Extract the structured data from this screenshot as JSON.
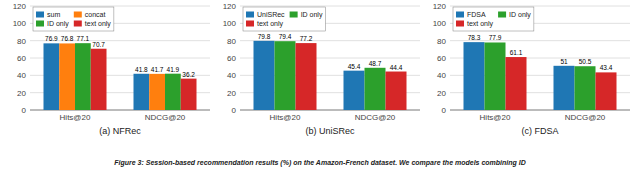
{
  "caption": "Figure 3: Session-based recommendation results (%) on the Amazon-French dataset. We compare the models combining ID",
  "chart_data": [
    {
      "type": "bar",
      "subtitle": "(a) NFRec",
      "categories": [
        "Hits@20",
        "NDCG@20"
      ],
      "series": [
        {
          "name": "sum",
          "color": "#1f77b4",
          "values": [
            76.9,
            41.8
          ]
        },
        {
          "name": "concat",
          "color": "#ff7f0e",
          "values": [
            76.8,
            41.7
          ]
        },
        {
          "name": "ID only",
          "color": "#2ca02c",
          "values": [
            77.1,
            41.9
          ]
        },
        {
          "name": "text only",
          "color": "#d62728",
          "values": [
            70.7,
            36.2
          ]
        }
      ],
      "ylim": [
        0,
        120
      ],
      "yticks": [
        0,
        20,
        40,
        60,
        80,
        100,
        120
      ],
      "grid": true,
      "legend": "upper left",
      "data_labels": true
    },
    {
      "type": "bar",
      "subtitle": "(b) UniSRec",
      "categories": [
        "Hits@20",
        "NDCG@20"
      ],
      "series": [
        {
          "name": "UniSRec",
          "color": "#1f77b4",
          "values": [
            79.8,
            45.4
          ]
        },
        {
          "name": "ID only",
          "color": "#2ca02c",
          "values": [
            79.4,
            48.7
          ]
        },
        {
          "name": "text only",
          "color": "#d62728",
          "values": [
            77.2,
            44.4
          ]
        }
      ],
      "ylim": [
        0,
        120
      ],
      "yticks": [
        0,
        20,
        40,
        60,
        80,
        100,
        120
      ],
      "grid": true,
      "legend": "upper left",
      "data_labels": true
    },
    {
      "type": "bar",
      "subtitle": "(c) FDSA",
      "categories": [
        "Hits@20",
        "NDCG@20"
      ],
      "series": [
        {
          "name": "FDSA",
          "color": "#1f77b4",
          "values": [
            78.3,
            51.0
          ]
        },
        {
          "name": "ID only",
          "color": "#2ca02c",
          "values": [
            77.9,
            50.5
          ]
        },
        {
          "name": "text only",
          "color": "#d62728",
          "values": [
            61.1,
            43.4
          ]
        }
      ],
      "ylim": [
        0,
        120
      ],
      "yticks": [
        0,
        20,
        40,
        60,
        80,
        100,
        120
      ],
      "grid": true,
      "legend": "upper left",
      "data_labels": true
    }
  ]
}
